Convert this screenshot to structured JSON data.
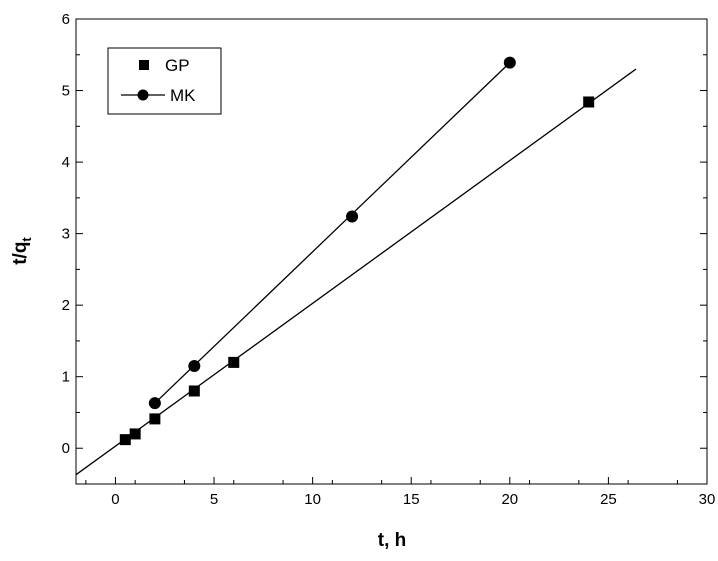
{
  "chart_data": {
    "type": "scatter",
    "title": "",
    "xlabel": "t, h",
    "ylabel_main": "t/q",
    "ylabel_sub": "t",
    "xlim": [
      -2,
      30
    ],
    "ylim": [
      -0.5,
      6
    ],
    "xticks": [
      0,
      5,
      10,
      15,
      20,
      25,
      30
    ],
    "yticks": [
      0,
      1,
      2,
      3,
      4,
      5,
      6
    ],
    "grid": false,
    "legend_position": "top-left",
    "series": [
      {
        "name": "GP",
        "marker": "square",
        "x": [
          0.5,
          1,
          2,
          4,
          6,
          24
        ],
        "y": [
          0.12,
          0.2,
          0.41,
          0.8,
          1.2,
          4.84
        ],
        "fit_line": {
          "x": [
            -2,
            26.4
          ],
          "y": [
            -0.37,
            5.3
          ]
        }
      },
      {
        "name": "MK",
        "marker": "circle",
        "x": [
          2,
          4,
          12,
          20
        ],
        "y": [
          0.63,
          1.15,
          3.24,
          5.39
        ],
        "fit_line": {
          "x": [
            2,
            20
          ],
          "y": [
            0.63,
            5.39
          ]
        }
      }
    ]
  }
}
